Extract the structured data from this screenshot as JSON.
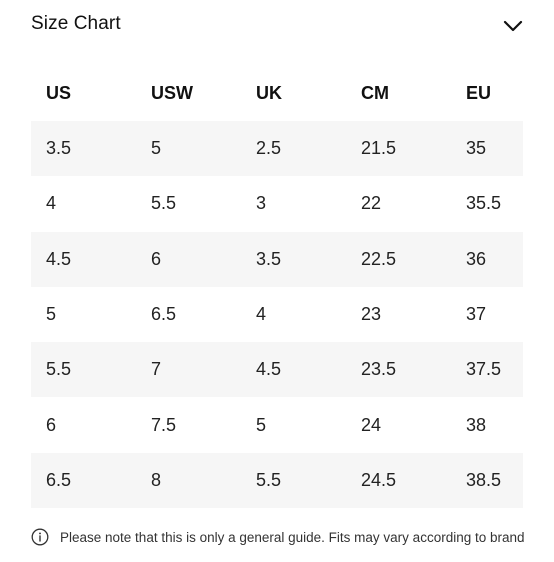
{
  "header": {
    "title": "Size Chart",
    "toggle_icon": "chevron-down-icon"
  },
  "table": {
    "columns": [
      "US",
      "USW",
      "UK",
      "CM",
      "EU"
    ],
    "rows": [
      [
        "3.5",
        "5",
        "2.5",
        "21.5",
        "35"
      ],
      [
        "4",
        "5.5",
        "3",
        "22",
        "35.5"
      ],
      [
        "4.5",
        "6",
        "3.5",
        "22.5",
        "36"
      ],
      [
        "5",
        "6.5",
        "4",
        "23",
        "37"
      ],
      [
        "5.5",
        "7",
        "4.5",
        "23.5",
        "37.5"
      ],
      [
        "6",
        "7.5",
        "5",
        "24",
        "38"
      ],
      [
        "6.5",
        "8",
        "5.5",
        "24.5",
        "38.5"
      ]
    ],
    "shaded_row_color": "#f6f6f6"
  },
  "note": {
    "icon": "info-icon",
    "text": "Please note that this is only a general guide. Fits may vary according to brand"
  }
}
